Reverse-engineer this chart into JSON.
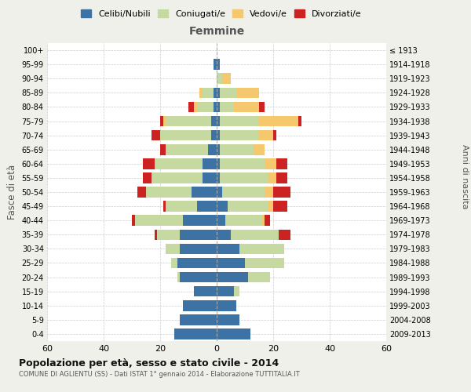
{
  "age_groups": [
    "0-4",
    "5-9",
    "10-14",
    "15-19",
    "20-24",
    "25-29",
    "30-34",
    "35-39",
    "40-44",
    "45-49",
    "50-54",
    "55-59",
    "60-64",
    "65-69",
    "70-74",
    "75-79",
    "80-84",
    "85-89",
    "90-94",
    "95-99",
    "100+"
  ],
  "birth_years": [
    "2009-2013",
    "2004-2008",
    "1999-2003",
    "1994-1998",
    "1989-1993",
    "1984-1988",
    "1979-1983",
    "1974-1978",
    "1969-1973",
    "1964-1968",
    "1959-1963",
    "1954-1958",
    "1949-1953",
    "1944-1948",
    "1939-1943",
    "1934-1938",
    "1929-1933",
    "1924-1928",
    "1919-1923",
    "1914-1918",
    "≤ 1913"
  ],
  "male": {
    "celibi": [
      15,
      13,
      12,
      8,
      13,
      14,
      13,
      13,
      12,
      7,
      9,
      5,
      5,
      3,
      2,
      2,
      1,
      1,
      0,
      1,
      0
    ],
    "coniugati": [
      0,
      0,
      0,
      0,
      1,
      2,
      5,
      8,
      17,
      11,
      16,
      18,
      17,
      15,
      18,
      16,
      6,
      4,
      0,
      0,
      0
    ],
    "vedovi": [
      0,
      0,
      0,
      0,
      0,
      0,
      0,
      0,
      0,
      0,
      0,
      0,
      0,
      0,
      0,
      1,
      1,
      1,
      0,
      0,
      0
    ],
    "divorziati": [
      0,
      0,
      0,
      0,
      0,
      0,
      0,
      1,
      1,
      1,
      3,
      3,
      4,
      2,
      3,
      1,
      2,
      0,
      0,
      0,
      0
    ]
  },
  "female": {
    "nubili": [
      12,
      8,
      7,
      6,
      11,
      10,
      8,
      5,
      3,
      4,
      2,
      1,
      1,
      1,
      1,
      1,
      1,
      1,
      0,
      1,
      0
    ],
    "coniugate": [
      0,
      0,
      0,
      2,
      8,
      14,
      16,
      17,
      13,
      14,
      15,
      17,
      16,
      12,
      14,
      14,
      5,
      6,
      2,
      0,
      0
    ],
    "vedove": [
      0,
      0,
      0,
      0,
      0,
      0,
      0,
      0,
      1,
      2,
      3,
      3,
      4,
      4,
      5,
      14,
      9,
      8,
      3,
      0,
      0
    ],
    "divorziate": [
      0,
      0,
      0,
      0,
      0,
      0,
      0,
      4,
      2,
      5,
      6,
      4,
      4,
      0,
      1,
      1,
      2,
      0,
      0,
      0,
      0
    ]
  },
  "colors": {
    "celibi": "#3d72a4",
    "coniugati": "#c5d9a0",
    "vedovi": "#f5c86e",
    "divorziati": "#cc2222"
  },
  "legend_labels": [
    "Celibi/Nubili",
    "Coniugati/e",
    "Vedovi/e",
    "Divorziati/e"
  ],
  "xlim": 60,
  "title": "Popolazione per età, sesso e stato civile - 2014",
  "subtitle": "COMUNE DI AGLIENTU (SS) - Dati ISTAT 1° gennaio 2014 - Elaborazione TUTTITALIA.IT",
  "xlabel_right": "Femmine",
  "ylabel_left": "Fasce di età",
  "ylabel_right": "Anni di nascita",
  "bg_color": "#f0f0eb",
  "plot_bg_color": "#ffffff"
}
